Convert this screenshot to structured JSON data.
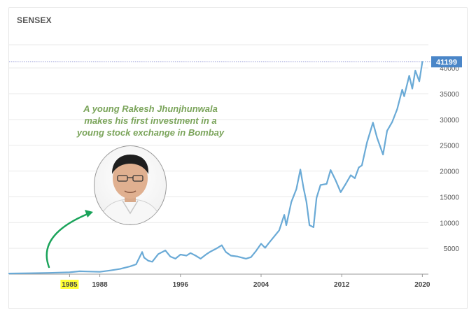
{
  "header": {
    "title": "SENSEX"
  },
  "annotation": {
    "lines": [
      "A young Rakesh Jhunjhunwala",
      "makes his first investment in a",
      "young stock exchange in Bombay"
    ]
  },
  "colors": {
    "series": "#6aaad6",
    "current_line": "#8a8fd1",
    "current_badge": "#4a86c8",
    "arrow": "#1aa35a",
    "highlight": "#ffff33",
    "annotation_text": "#7aa45a"
  },
  "chart_data": {
    "type": "line",
    "title": "SENSEX",
    "xlabel": "",
    "ylabel": "",
    "xlim": [
      1979,
      2020.6
    ],
    "ylim": [
      0,
      44500
    ],
    "x_ticks": [
      {
        "label": "1985",
        "value": 1985,
        "highlight": true
      },
      {
        "label": "1988",
        "value": 1988
      },
      {
        "label": "1996",
        "value": 1996
      },
      {
        "label": "2004",
        "value": 2004
      },
      {
        "label": "2012",
        "value": 2012
      },
      {
        "label": "2020",
        "value": 2020
      }
    ],
    "y_ticks": [
      {
        "label": "5000",
        "value": 5000
      },
      {
        "label": "10000",
        "value": 10000
      },
      {
        "label": "15000",
        "value": 15000
      },
      {
        "label": "20000",
        "value": 20000
      },
      {
        "label": "25000",
        "value": 25000
      },
      {
        "label": "30000",
        "value": 30000
      },
      {
        "label": "35000",
        "value": 35000
      },
      {
        "label": "40000",
        "value": 40000
      }
    ],
    "current_value": {
      "label": "41199",
      "value": 41199
    },
    "grid": true,
    "series": [
      {
        "x": [
          1979,
          1981,
          1983,
          1985,
          1986,
          1987,
          1988,
          1989,
          1990,
          1991,
          1991.6,
          1992.2,
          1992.4,
          1992.8,
          1993.2,
          1993.8,
          1994.5,
          1995,
          1995.5,
          1996,
          1996.6,
          1997,
          1997.5,
          1998,
          1998.6,
          1999,
          1999.5,
          2000.1,
          2000.5,
          2001,
          2001.7,
          2002.5,
          2003,
          2003.5,
          2004,
          2004.4,
          2004.8,
          2005.3,
          2005.8,
          2006.3,
          2006.5,
          2007,
          2007.5,
          2007.9,
          2008.2,
          2008.5,
          2008.8,
          2009.2,
          2009.5,
          2009.9,
          2010.5,
          2010.9,
          2011.4,
          2011.9,
          2012.4,
          2012.9,
          2013.3,
          2013.7,
          2014,
          2014.5,
          2015.1,
          2015.5,
          2016.1,
          2016.5,
          2017,
          2017.5,
          2018,
          2018.2,
          2018.7,
          2019,
          2019.3,
          2019.7,
          2020
        ],
        "y": [
          120,
          180,
          250,
          350,
          550,
          500,
          450,
          700,
          1000,
          1500,
          1900,
          4300,
          3200,
          2600,
          2400,
          3900,
          4600,
          3400,
          3000,
          3800,
          3600,
          4100,
          3600,
          3000,
          3900,
          4400,
          4900,
          5600,
          4300,
          3600,
          3400,
          3000,
          3300,
          4500,
          5900,
          5100,
          6100,
          7300,
          8500,
          11500,
          9500,
          14000,
          16500,
          20300,
          16800,
          14000,
          9500,
          9100,
          14800,
          17300,
          17500,
          20200,
          18200,
          15900,
          17500,
          19200,
          18600,
          20700,
          21100,
          25500,
          29400,
          26500,
          23200,
          27800,
          29500,
          32000,
          35800,
          34500,
          38500,
          36000,
          39500,
          37400,
          41199
        ]
      }
    ]
  }
}
